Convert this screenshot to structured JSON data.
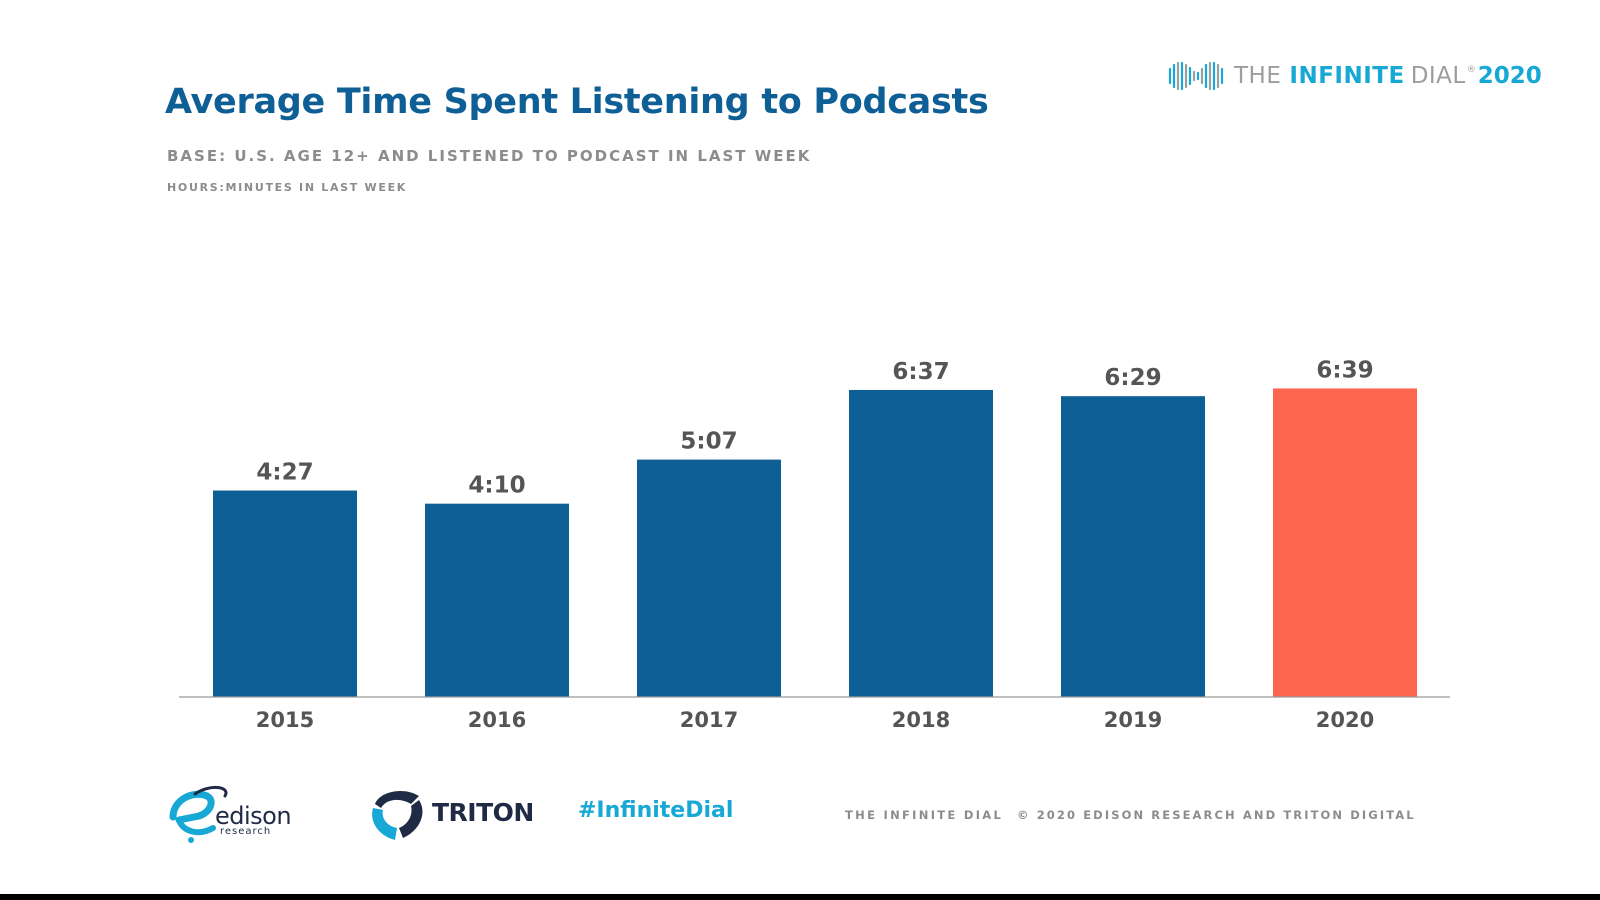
{
  "header": {
    "title": "Average Time Spent Listening to Podcasts",
    "subtitle": "BASE: U.S. AGE 12+ AND LISTENED TO PODCAST IN LAST WEEK",
    "unit_note": "HOURS:MINUTES IN LAST WEEK"
  },
  "brand": {
    "the": "THE",
    "infinite": "INFINITE",
    "dial": "DIAL",
    "reg": "®",
    "year": "2020"
  },
  "chart_data": {
    "type": "bar",
    "categories": [
      "2015",
      "2016",
      "2017",
      "2018",
      "2019",
      "2020"
    ],
    "values": [
      4.45,
      4.1667,
      5.1167,
      6.6167,
      6.4833,
      6.65
    ],
    "data_labels": [
      "4:27",
      "4:10",
      "5:07",
      "6:37",
      "6:29",
      "6:39"
    ],
    "units": "hours",
    "ylim": [
      0,
      12.5
    ],
    "bar_colors": [
      "#0f5f97",
      "#0f5f97",
      "#0f5f97",
      "#0f5f97",
      "#0f5f97",
      "#fe654f"
    ],
    "grid": false,
    "legend": "none"
  },
  "footer": {
    "edison_name": "edison",
    "edison_sub": "research",
    "triton_name": "TRITON",
    "hashtag": "#InfiniteDial",
    "left_text": "THE INFINITE DIAL",
    "right_text": "© 2020 EDISON RESEARCH AND TRITON DIGITAL"
  },
  "colors": {
    "title": "#0f5f97",
    "bar": "#0f5f97",
    "highlight_bar": "#fe654f",
    "brand_accent": "#17a8d6",
    "gray_text": "#8c8c8c",
    "axis": "#9a9a9a",
    "value_label": "#555555"
  }
}
